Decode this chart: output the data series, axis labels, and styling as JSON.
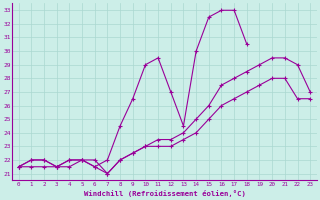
{
  "xlabel": "Windchill (Refroidissement éolien,°C)",
  "xlim": [
    -0.5,
    23.5
  ],
  "ylim": [
    20.5,
    33.5
  ],
  "xticks": [
    0,
    1,
    2,
    3,
    4,
    5,
    6,
    7,
    8,
    9,
    10,
    11,
    12,
    13,
    14,
    15,
    16,
    17,
    18,
    19,
    20,
    21,
    22,
    23
  ],
  "yticks": [
    21,
    22,
    23,
    24,
    25,
    26,
    27,
    28,
    29,
    30,
    31,
    32,
    33
  ],
  "bg_color": "#cceee8",
  "grid_color": "#aad8d0",
  "line_color": "#990099",
  "line1_x": [
    0,
    1,
    2,
    3,
    4,
    5,
    6,
    7,
    8,
    9,
    10,
    11,
    12,
    13,
    14,
    15,
    16,
    17,
    18
  ],
  "line1_y": [
    21.5,
    22.0,
    22.0,
    21.5,
    22.0,
    22.0,
    21.5,
    22.0,
    24.5,
    26.5,
    29.0,
    29.5,
    27.0,
    24.5,
    30.0,
    32.5,
    33.0,
    33.0,
    30.5
  ],
  "line2_x": [
    0,
    1,
    2,
    3,
    4,
    5,
    6,
    7,
    8,
    9,
    10,
    11,
    12,
    13,
    14,
    15,
    16,
    17,
    18,
    19,
    20,
    21,
    22,
    23
  ],
  "line2_y": [
    21.5,
    22.0,
    22.0,
    21.5,
    22.0,
    22.0,
    21.5,
    21.0,
    22.0,
    22.5,
    23.0,
    23.5,
    23.5,
    24.0,
    25.0,
    26.0,
    27.5,
    28.0,
    28.5,
    29.0,
    29.5,
    29.5,
    29.0,
    27.0
  ],
  "line3_x": [
    0,
    1,
    2,
    3,
    4,
    5,
    6,
    7,
    8,
    9,
    10,
    11,
    12,
    13,
    14,
    15,
    16,
    17,
    18,
    19,
    20,
    21,
    22,
    23
  ],
  "line3_y": [
    21.5,
    21.5,
    21.5,
    21.5,
    21.5,
    22.0,
    22.0,
    21.0,
    22.0,
    22.5,
    23.0,
    23.0,
    23.0,
    23.5,
    24.0,
    25.0,
    26.0,
    26.5,
    27.0,
    27.5,
    28.0,
    28.0,
    26.5,
    26.5
  ]
}
